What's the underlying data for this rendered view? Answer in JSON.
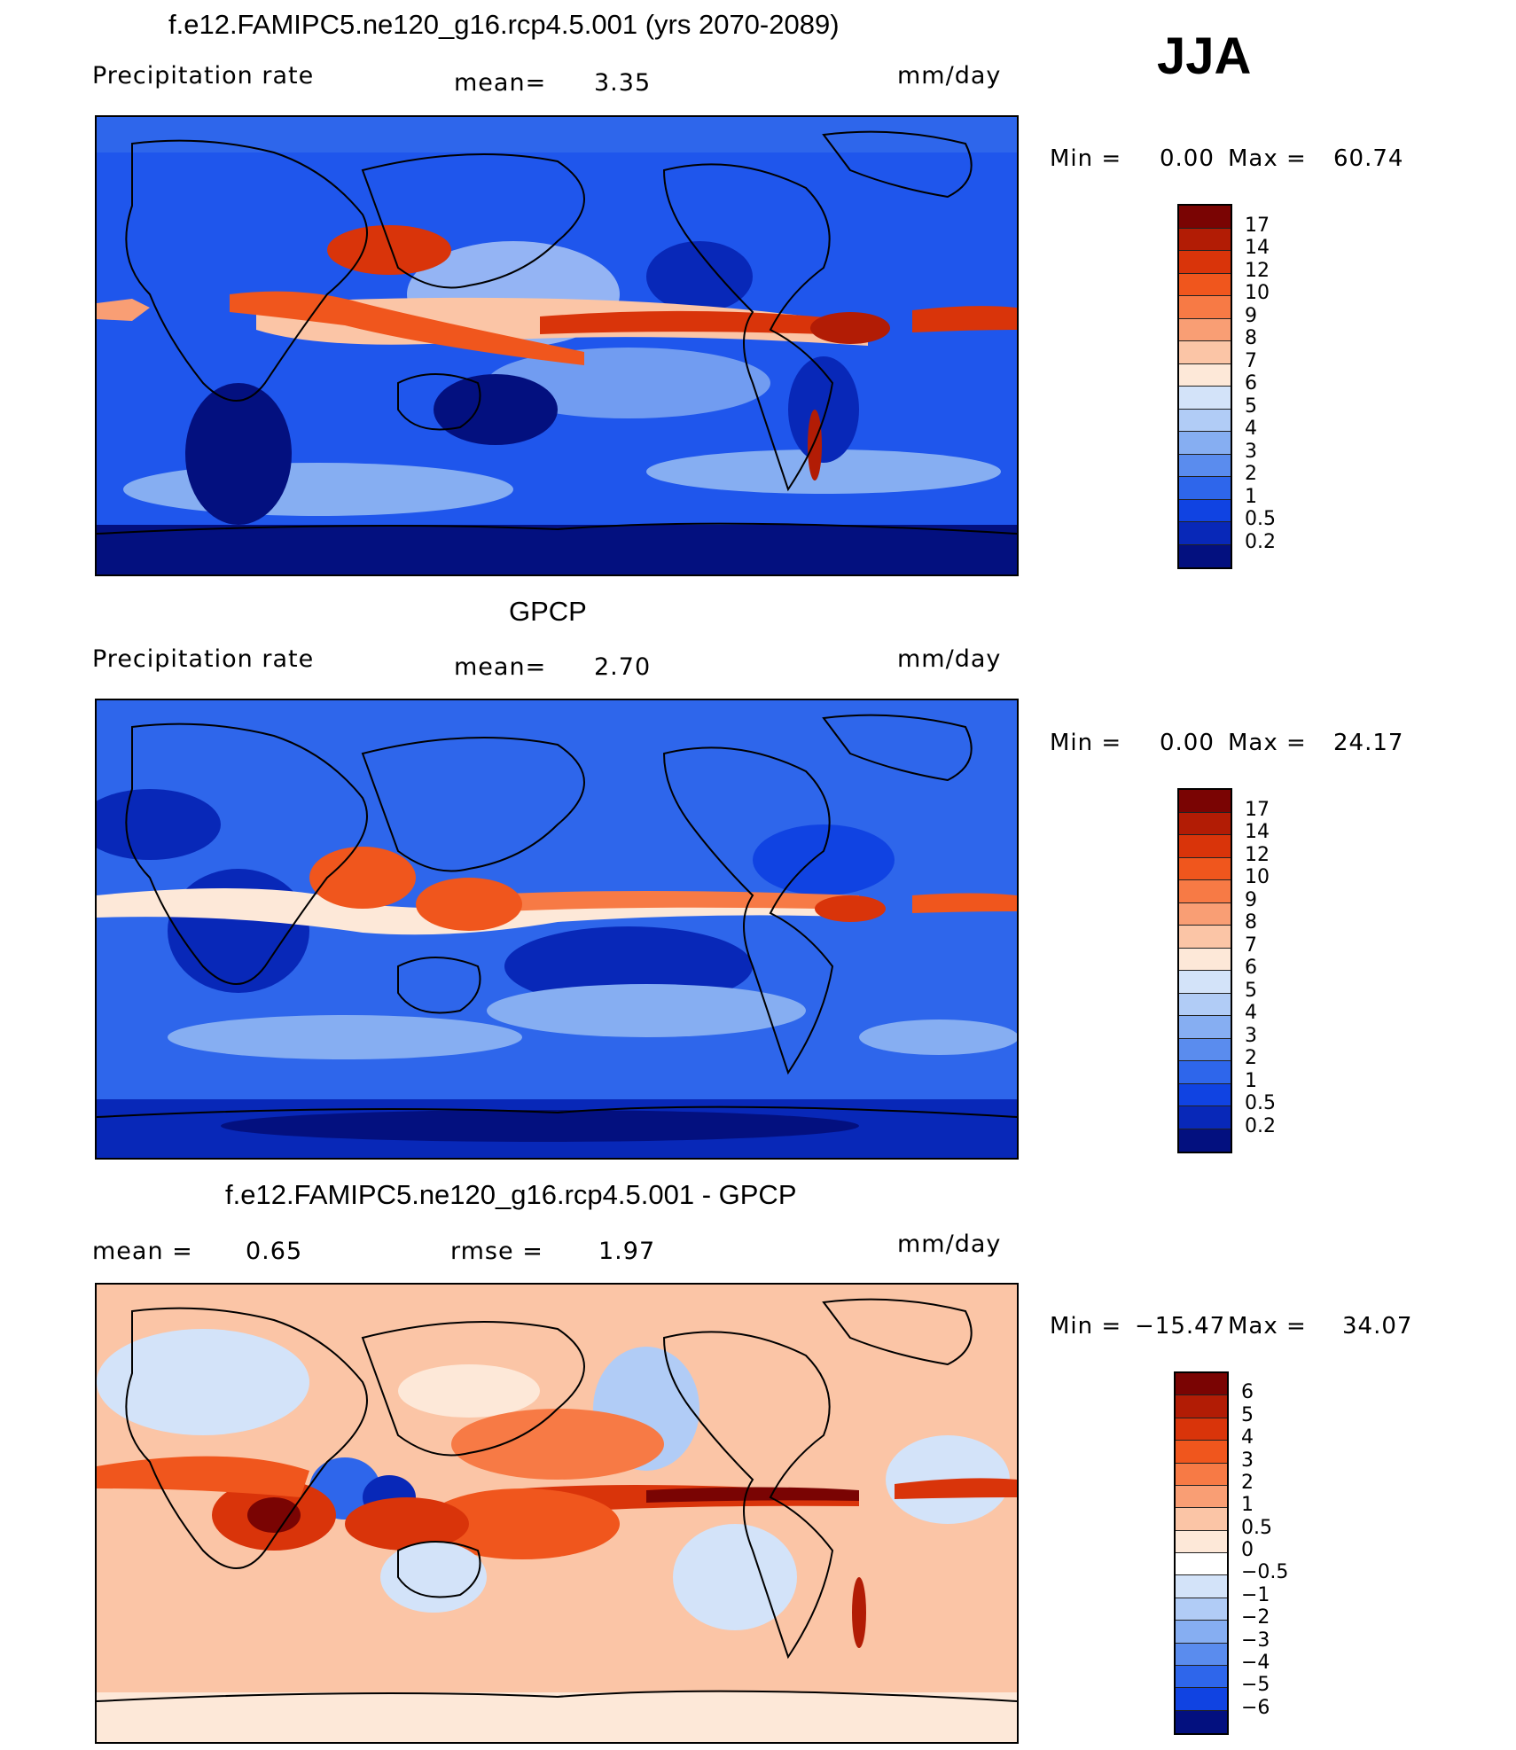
{
  "season": "JJA",
  "units": "mm/day",
  "panels": [
    {
      "title": "f.e12.FAMIPC5.ne120_g16.rcp4.5.001 (yrs 2070-2089)",
      "variable": "Precipitation rate",
      "stat_label": "mean=",
      "stat_value": "3.35",
      "min_label": "Min =",
      "min_value": "0.00",
      "max_label": "Max =",
      "max_value": "60.74"
    },
    {
      "title": "GPCP",
      "variable": "Precipitation rate",
      "stat_label": "mean=",
      "stat_value": "2.70",
      "min_label": "Min =",
      "min_value": "0.00",
      "max_label": "Max =",
      "max_value": "24.17"
    },
    {
      "title": "f.e12.FAMIPC5.ne120_g16.rcp4.5.001 - GPCP",
      "mean_label": "mean =",
      "mean_value": "0.65",
      "rmse_label": "rmse =",
      "rmse_value": "1.97",
      "min_label": "Min =",
      "min_value": "−15.47",
      "max_label": "Max =",
      "max_value": "34.07"
    }
  ],
  "chart_data": [
    {
      "type": "heatmap",
      "title": "f.e12.FAMIPC5.ne120_g16.rcp4.5.001 (yrs 2070-2089)",
      "variable": "Precipitation rate",
      "units": "mm/day",
      "mean": 3.35,
      "min": 0.0,
      "max": 60.74,
      "colorbar_levels": [
        "17",
        "14",
        "12",
        "10",
        "9",
        "8",
        "7",
        "6",
        "5",
        "4",
        "3",
        "2",
        "1",
        "0.5",
        "0.2"
      ],
      "colors": [
        "#7a0403",
        "#b21c05",
        "#d9340a",
        "#f0561d",
        "#f77a45",
        "#f99e74",
        "#fbc5a6",
        "#fde8d8",
        "#d3e3f9",
        "#b1ccf6",
        "#86aef2",
        "#5a8cee",
        "#2e66eb",
        "#1043e2",
        "#0828b8",
        "#03107f"
      ]
    },
    {
      "type": "heatmap",
      "title": "GPCP",
      "variable": "Precipitation rate",
      "units": "mm/day",
      "mean": 2.7,
      "min": 0.0,
      "max": 24.17,
      "colorbar_levels": [
        "17",
        "14",
        "12",
        "10",
        "9",
        "8",
        "7",
        "6",
        "5",
        "4",
        "3",
        "2",
        "1",
        "0.5",
        "0.2"
      ],
      "colors": [
        "#7a0403",
        "#b21c05",
        "#d9340a",
        "#f0561d",
        "#f77a45",
        "#f99e74",
        "#fbc5a6",
        "#fde8d8",
        "#d3e3f9",
        "#b1ccf6",
        "#86aef2",
        "#5a8cee",
        "#2e66eb",
        "#1043e2",
        "#0828b8",
        "#03107f"
      ]
    },
    {
      "type": "heatmap",
      "title": "f.e12.FAMIPC5.ne120_g16.rcp4.5.001 - GPCP",
      "units": "mm/day",
      "mean": 0.65,
      "rmse": 1.97,
      "min": -15.47,
      "max": 34.07,
      "colorbar_levels": [
        "6",
        "5",
        "4",
        "3",
        "2",
        "1",
        "0.5",
        "0",
        "−0.5",
        "−1",
        "−2",
        "−3",
        "−4",
        "−5",
        "−6"
      ],
      "colors": [
        "#7a0403",
        "#b21c05",
        "#d9340a",
        "#f0561d",
        "#f77a45",
        "#f99e74",
        "#fbc5a6",
        "#fde8d8",
        "#ffffff",
        "#d3e3f9",
        "#b1ccf6",
        "#86aef2",
        "#5a8cee",
        "#2e66eb",
        "#1043e2",
        "#03107f"
      ]
    }
  ]
}
